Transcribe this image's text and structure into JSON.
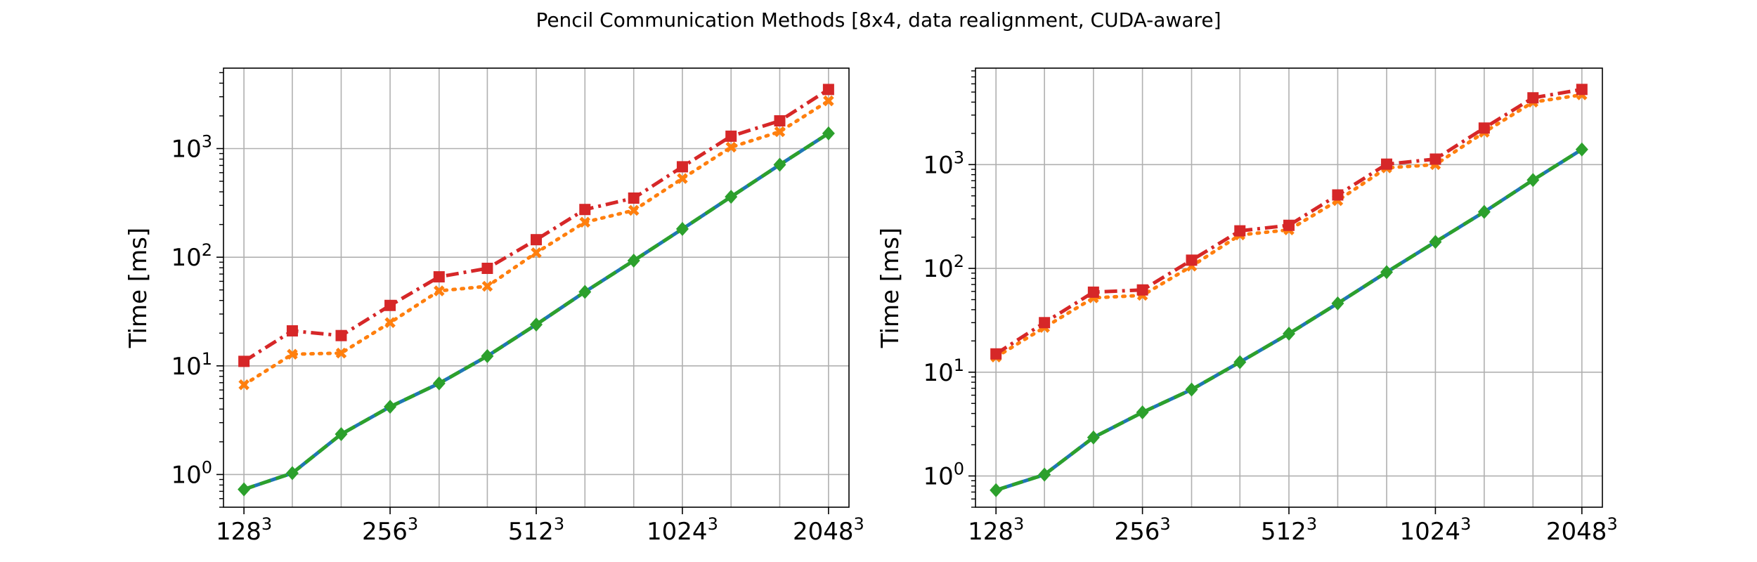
{
  "figure": {
    "title": "Pencil Communication Methods [8x4, data realignment, CUDA-aware]"
  },
  "chart_data": [
    {
      "type": "line",
      "xlabel": "",
      "ylabel": "Time [ms]",
      "yscale": "log",
      "ylim": [
        0.5,
        5500
      ],
      "grid": true,
      "x": [
        128,
        161,
        203,
        256,
        323,
        406,
        512,
        645,
        813,
        1024,
        1290,
        1625,
        2048
      ],
      "x_tick_labels": [
        {
          "base": "128",
          "exp": "3"
        },
        {
          "base": "256",
          "exp": "3"
        },
        {
          "base": "512",
          "exp": "3"
        },
        {
          "base": "1024",
          "exp": "3"
        },
        {
          "base": "2048",
          "exp": "3"
        }
      ],
      "x_ticks": [
        128,
        256,
        512,
        1024,
        2048
      ],
      "y_tick_labels": [
        {
          "value": 1,
          "base": "10",
          "exp": "0"
        },
        {
          "value": 10,
          "base": "10",
          "exp": "1"
        },
        {
          "value": 100,
          "base": "10",
          "exp": "2"
        },
        {
          "value": 1000,
          "base": "10",
          "exp": "3"
        }
      ],
      "series": [
        {
          "color": "#1f77b4",
          "style": "solid",
          "marker": "none",
          "values": [
            0.73,
            1.03,
            2.35,
            4.2,
            6.9,
            12.3,
            24,
            48,
            93,
            182,
            360,
            710,
            1380
          ]
        },
        {
          "color": "#ff7f0e",
          "style": "dotted",
          "marker": "x",
          "values": [
            6.7,
            12.8,
            13.1,
            25,
            49,
            54,
            110,
            210,
            270,
            530,
            1030,
            1430,
            2750
          ]
        },
        {
          "color": "#2ca02c",
          "style": "dashed",
          "marker": "diamond",
          "values": [
            0.73,
            1.03,
            2.35,
            4.2,
            6.9,
            12.3,
            24,
            48,
            93,
            182,
            360,
            710,
            1380
          ]
        },
        {
          "color": "#d62728",
          "style": "dashdot",
          "marker": "square",
          "values": [
            11,
            21,
            19,
            36,
            66,
            79,
            145,
            275,
            350,
            680,
            1300,
            1800,
            3500
          ]
        }
      ]
    },
    {
      "type": "line",
      "xlabel": "",
      "ylabel": "Time [ms]",
      "yscale": "log",
      "ylim": [
        0.5,
        8500
      ],
      "grid": true,
      "x": [
        128,
        161,
        203,
        256,
        323,
        406,
        512,
        645,
        813,
        1024,
        1290,
        1625,
        2048
      ],
      "x_tick_labels": [
        {
          "base": "128",
          "exp": "3"
        },
        {
          "base": "256",
          "exp": "3"
        },
        {
          "base": "512",
          "exp": "3"
        },
        {
          "base": "1024",
          "exp": "3"
        },
        {
          "base": "2048",
          "exp": "3"
        }
      ],
      "x_ticks": [
        128,
        256,
        512,
        1024,
        2048
      ],
      "y_tick_labels": [
        {
          "value": 1,
          "base": "10",
          "exp": "0"
        },
        {
          "value": 10,
          "base": "10",
          "exp": "1"
        },
        {
          "value": 100,
          "base": "10",
          "exp": "2"
        },
        {
          "value": 1000,
          "base": "10",
          "exp": "3"
        }
      ],
      "series": [
        {
          "color": "#1f77b4",
          "style": "solid",
          "marker": "none",
          "values": [
            0.73,
            1.03,
            2.35,
            4.1,
            6.8,
            12.5,
            23.5,
            46,
            92,
            180,
            350,
            710,
            1400
          ]
        },
        {
          "color": "#ff7f0e",
          "style": "dotted",
          "marker": "x",
          "values": [
            14,
            27,
            52,
            55,
            105,
            210,
            235,
            450,
            930,
            1000,
            2050,
            4000,
            4700
          ]
        },
        {
          "color": "#2ca02c",
          "style": "dashed",
          "marker": "diamond",
          "values": [
            0.73,
            1.03,
            2.35,
            4.1,
            6.8,
            12.5,
            23.5,
            46,
            92,
            180,
            350,
            710,
            1400
          ]
        },
        {
          "color": "#d62728",
          "style": "dashdot",
          "marker": "square",
          "values": [
            15,
            30,
            59,
            62,
            120,
            230,
            260,
            510,
            1010,
            1130,
            2250,
            4400,
            5300
          ]
        }
      ]
    }
  ]
}
